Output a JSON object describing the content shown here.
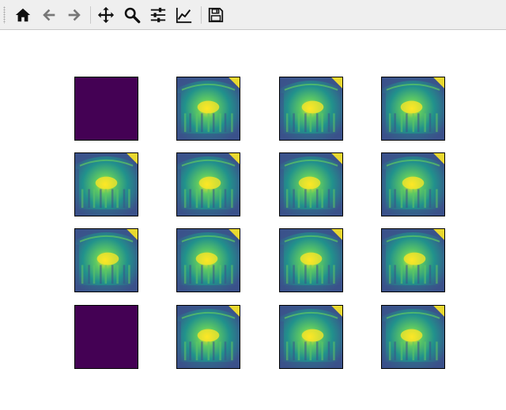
{
  "toolbar": {
    "tools": [
      {
        "name": "home-icon",
        "interactable": true
      },
      {
        "name": "back-arrow-icon",
        "interactable": true
      },
      {
        "name": "forward-arrow-icon",
        "interactable": true
      },
      {
        "name": "pan-move-icon",
        "interactable": true
      },
      {
        "name": "zoom-magnifier-icon",
        "interactable": true
      },
      {
        "name": "configure-subplots-icon",
        "interactable": true
      },
      {
        "name": "edit-axis-lines-icon",
        "interactable": true
      },
      {
        "name": "save-floppy-icon",
        "interactable": true
      }
    ]
  },
  "figure": {
    "colormap": "viridis",
    "colors": {
      "empty_panel": "#440154",
      "dark": "#3b528b",
      "mid": "#21918c",
      "light": "#5ec962",
      "bright": "#fde725"
    },
    "grid": {
      "rows": 4,
      "cols": 4
    },
    "panels": [
      {
        "row": 0,
        "col": 0,
        "kind": "empty"
      },
      {
        "row": 0,
        "col": 1,
        "kind": "image"
      },
      {
        "row": 0,
        "col": 2,
        "kind": "image"
      },
      {
        "row": 0,
        "col": 3,
        "kind": "image"
      },
      {
        "row": 1,
        "col": 0,
        "kind": "image"
      },
      {
        "row": 1,
        "col": 1,
        "kind": "image"
      },
      {
        "row": 1,
        "col": 2,
        "kind": "image"
      },
      {
        "row": 1,
        "col": 3,
        "kind": "image"
      },
      {
        "row": 2,
        "col": 0,
        "kind": "image"
      },
      {
        "row": 2,
        "col": 1,
        "kind": "image"
      },
      {
        "row": 2,
        "col": 2,
        "kind": "image"
      },
      {
        "row": 2,
        "col": 3,
        "kind": "image"
      },
      {
        "row": 3,
        "col": 0,
        "kind": "empty"
      },
      {
        "row": 3,
        "col": 1,
        "kind": "image"
      },
      {
        "row": 3,
        "col": 2,
        "kind": "image"
      },
      {
        "row": 3,
        "col": 3,
        "kind": "image"
      }
    ]
  }
}
